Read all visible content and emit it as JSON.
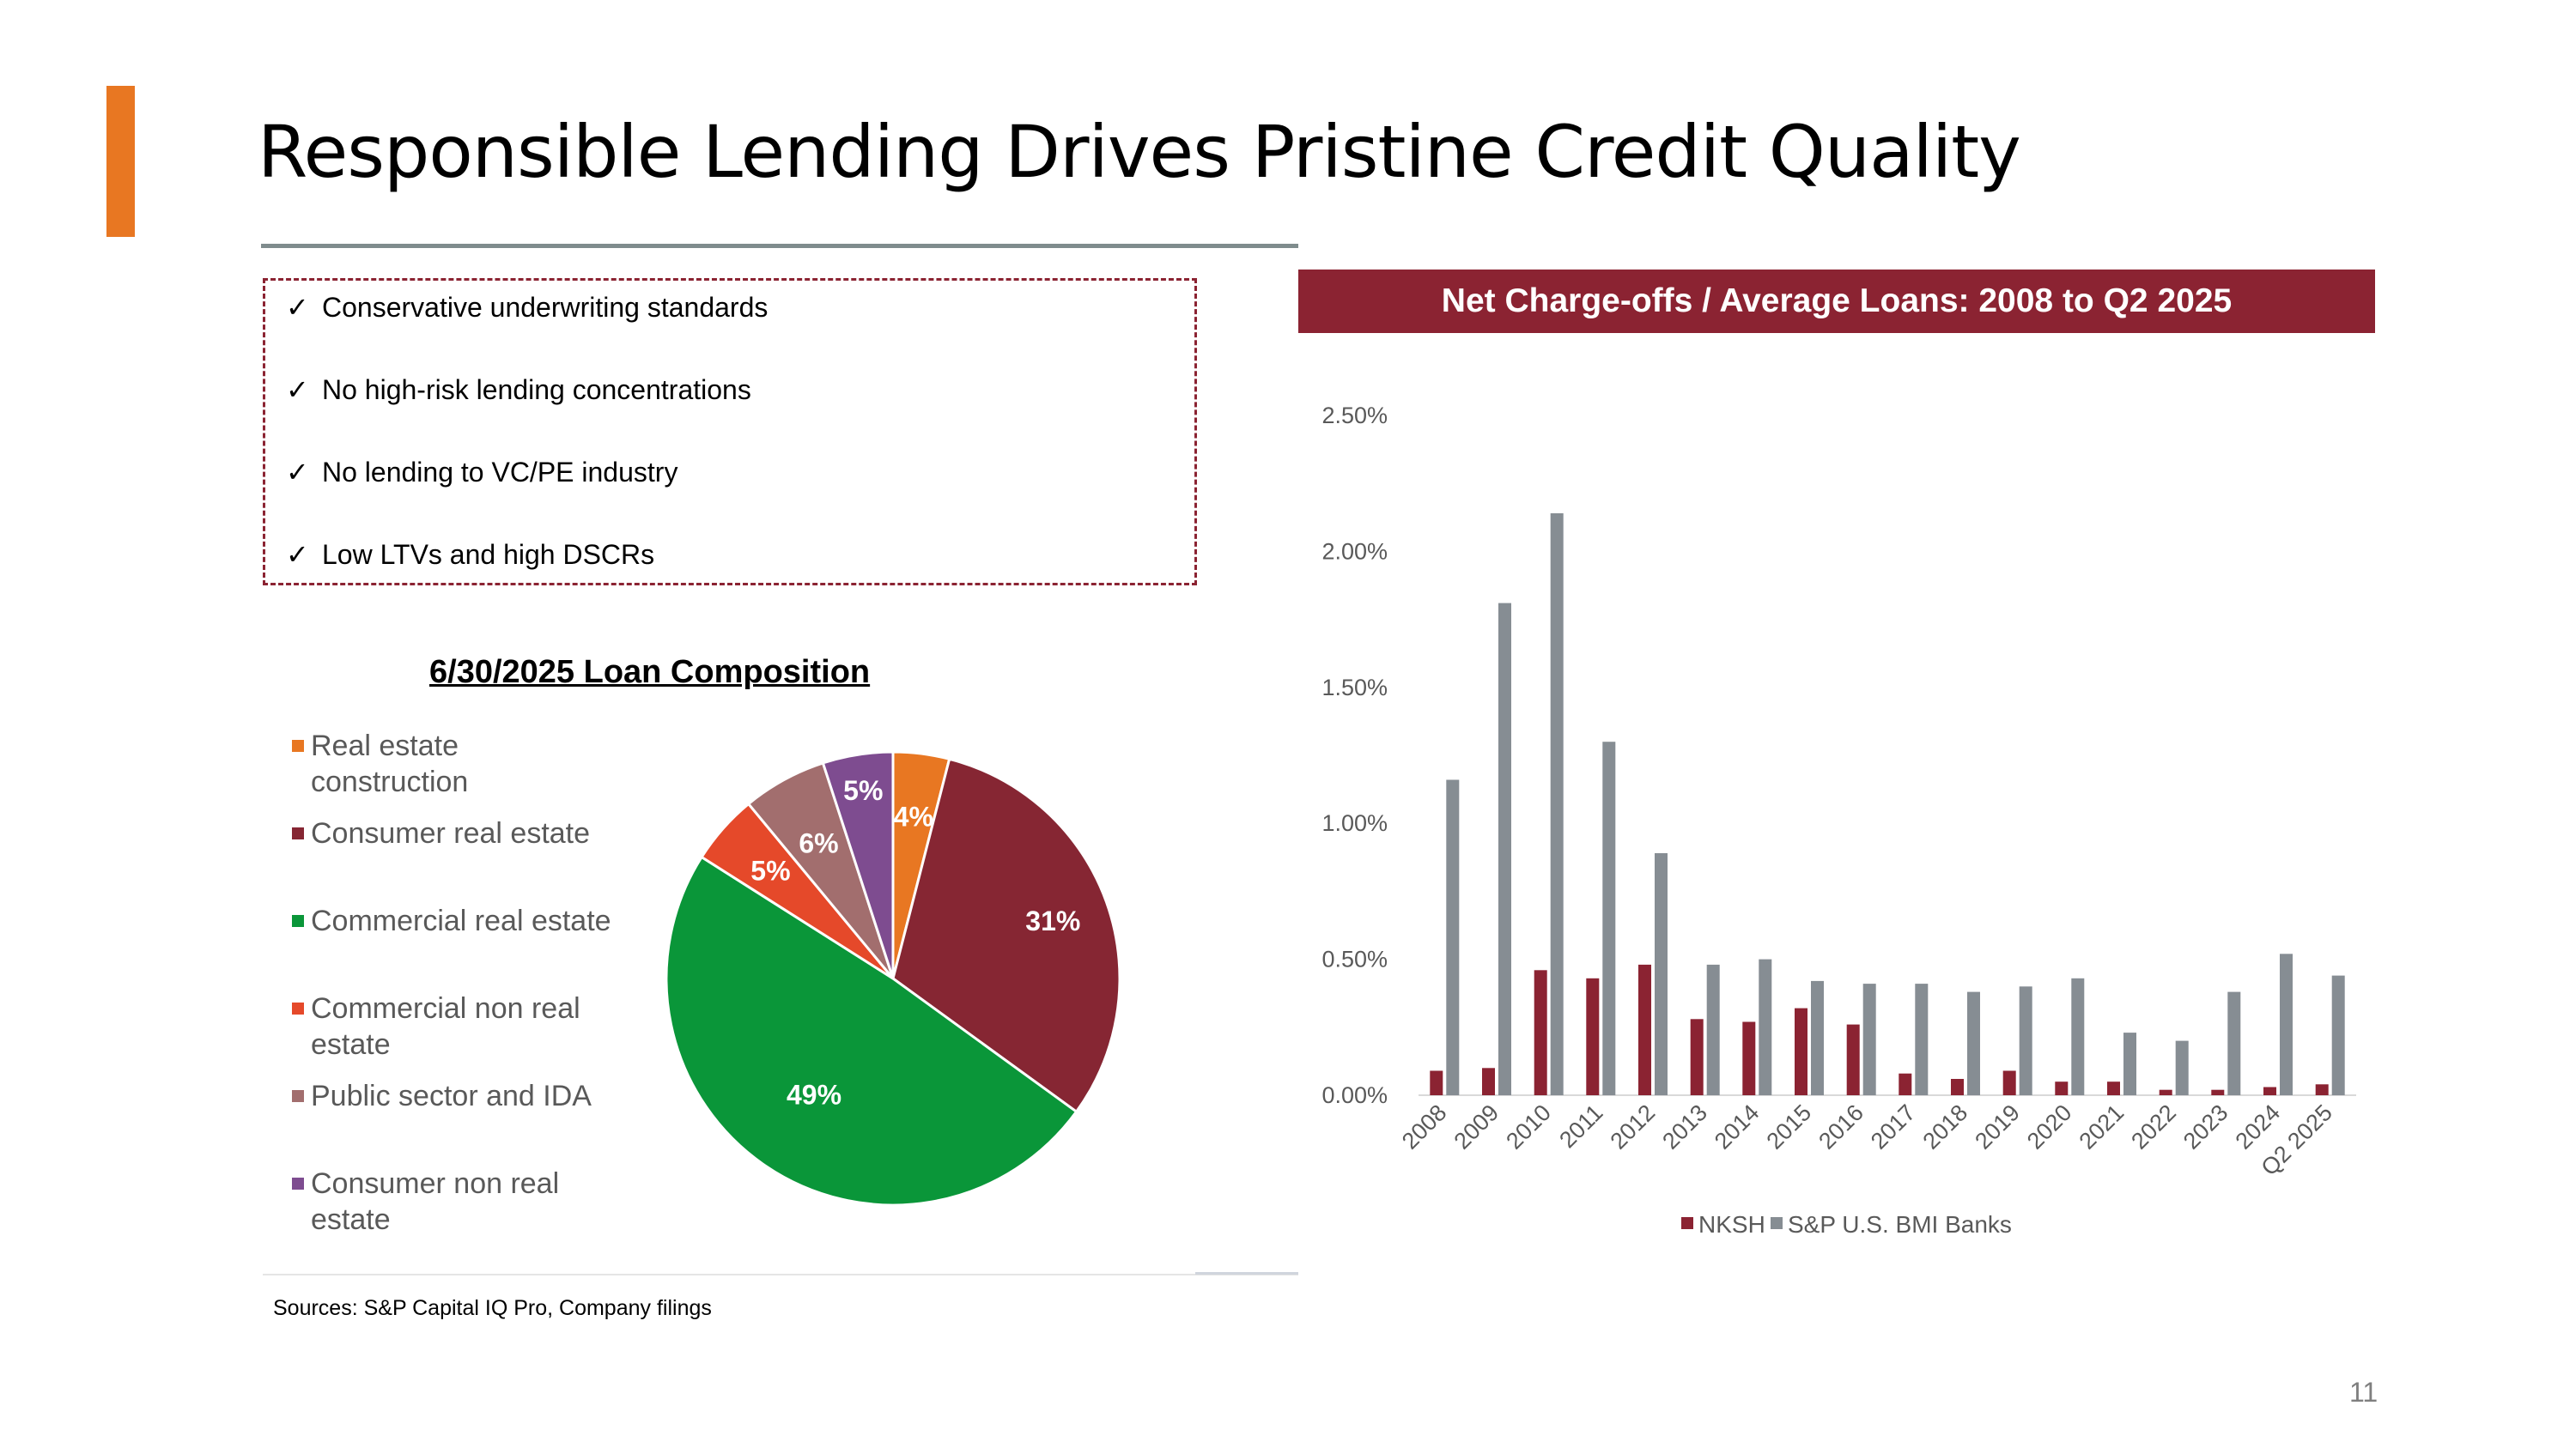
{
  "slide": {
    "title": "Responsible Lending Drives Pristine Credit Quality",
    "page_number": "11",
    "sources": "Sources: S&P Capital IQ Pro, Company filings",
    "colors": {
      "accent": "#E87722",
      "brand": "#8B2332",
      "rule": "#7F8C8D"
    }
  },
  "bullets": {
    "check_glyph": "✓",
    "items": [
      "Conservative underwriting standards",
      "No high-risk lending concentrations",
      "No lending to VC/PE industry",
      "Low LTVs and high DSCRs"
    ]
  },
  "pie": {
    "title": "6/30/2025 Loan Composition"
  },
  "bar": {
    "banner": "Net Charge-offs / Average Loans: 2008 to Q2 2025"
  },
  "chart_data": [
    {
      "type": "pie",
      "title": "6/30/2025 Loan Composition",
      "legend_position": "left",
      "slices": [
        {
          "name": "Real estate construction",
          "value": 4,
          "label": "4%",
          "color": "#E87722"
        },
        {
          "name": "Consumer real estate",
          "value": 31,
          "label": "31%",
          "color": "#862633"
        },
        {
          "name": "Commercial real estate",
          "value": 49,
          "label": "49%",
          "color": "#0A9639"
        },
        {
          "name": "Commercial non real estate",
          "value": 5,
          "label": "5%",
          "color": "#E5492A"
        },
        {
          "name": "Public sector and IDA",
          "value": 6,
          "label": "6%",
          "color": "#A26E6E"
        },
        {
          "name": "Consumer non real estate",
          "value": 5,
          "label": "5%",
          "color": "#7E4C90"
        }
      ]
    },
    {
      "type": "bar",
      "title": "Net Charge-offs / Average Loans: 2008 to Q2 2025",
      "categories": [
        "2008",
        "2009",
        "2010",
        "2011",
        "2012",
        "2013",
        "2014",
        "2015",
        "2016",
        "2017",
        "2018",
        "2019",
        "2020",
        "2021",
        "2022",
        "2023",
        "2024",
        "Q2 2025"
      ],
      "ylim": [
        0,
        2.5
      ],
      "yticks": [
        0,
        0.5,
        1.0,
        1.5,
        2.0,
        2.5
      ],
      "ytick_labels": [
        "0.00%",
        "0.50%",
        "1.00%",
        "1.50%",
        "2.00%",
        "2.50%"
      ],
      "grid": false,
      "legend_position": "bottom",
      "series": [
        {
          "name": "NKSH",
          "color": "#8B2332",
          "values": [
            0.09,
            0.1,
            0.46,
            0.43,
            0.48,
            0.28,
            0.27,
            0.32,
            0.26,
            0.08,
            0.06,
            0.09,
            0.05,
            0.05,
            0.02,
            0.02,
            0.03,
            0.04
          ]
        },
        {
          "name": "S&P U.S. BMI Banks",
          "color": "#868D93",
          "values": [
            1.16,
            1.81,
            2.14,
            1.3,
            0.89,
            0.48,
            0.5,
            0.42,
            0.41,
            0.41,
            0.38,
            0.4,
            0.43,
            0.23,
            0.2,
            0.38,
            0.52,
            0.44
          ]
        }
      ]
    }
  ]
}
